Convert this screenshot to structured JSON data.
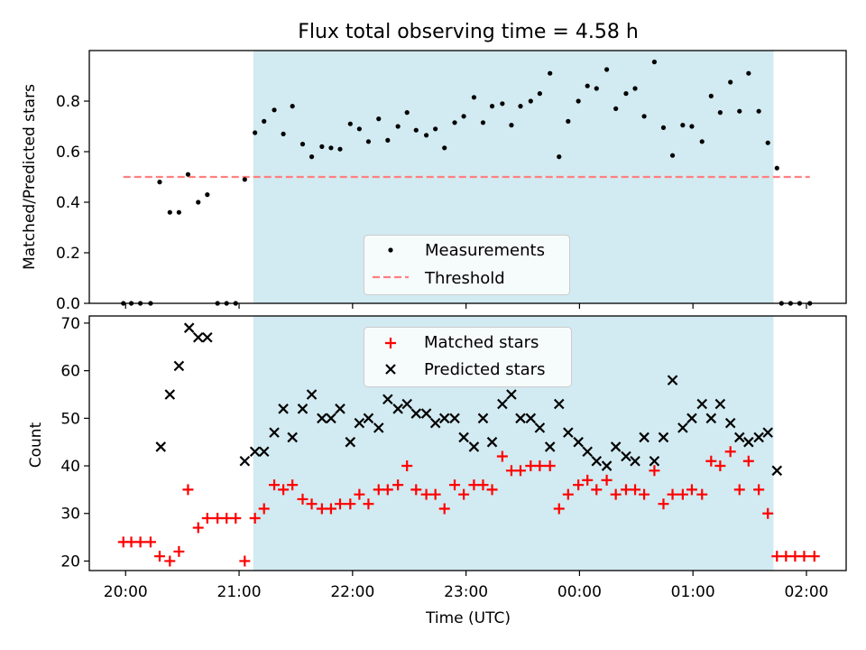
{
  "chart_data": [
    {
      "type": "scatter",
      "title": "Flux total observing time = 4.58 h",
      "ylabel": "Matched/Predicted stars",
      "ylim": [
        0,
        1.0
      ],
      "yticks": [
        "0.0",
        "0.2",
        "0.4",
        "0.6",
        "0.8"
      ],
      "ytick_values": [
        0,
        0.2,
        0.4,
        0.6,
        0.8
      ],
      "shaded_span": {
        "start": 21.125,
        "end": 25.71,
        "color": "#add8e6"
      },
      "threshold": {
        "value": 0.5,
        "x_range": [
          19.98,
          26.03
        ],
        "color": "#ff8080"
      },
      "legend": {
        "entries": [
          "Measurements",
          "Threshold"
        ],
        "placement": "lower-center"
      },
      "series": [
        {
          "name": "Measurements",
          "marker": "dot",
          "color": "#000000",
          "x": [
            19.98,
            20.05,
            20.13,
            20.22,
            20.3,
            20.39,
            20.47,
            20.55,
            20.64,
            20.72,
            20.81,
            20.89,
            20.97,
            21.05,
            21.14,
            21.22,
            21.31,
            21.39,
            21.47,
            21.56,
            21.64,
            21.73,
            21.81,
            21.89,
            21.98,
            22.06,
            22.14,
            22.23,
            22.31,
            22.4,
            22.48,
            22.56,
            22.65,
            22.73,
            22.81,
            22.9,
            22.98,
            23.07,
            23.15,
            23.23,
            23.32,
            23.4,
            23.48,
            23.57,
            23.65,
            23.74,
            23.82,
            23.9,
            23.99,
            24.07,
            24.15,
            24.24,
            24.32,
            24.41,
            24.49,
            24.57,
            24.66,
            24.74,
            24.82,
            24.91,
            24.99,
            25.08,
            25.16,
            25.24,
            25.33,
            25.41,
            25.49,
            25.58,
            25.66,
            25.74,
            25.78,
            25.86,
            25.94,
            26.03
          ],
          "y": [
            0,
            0,
            0,
            0,
            0.48,
            0.36,
            0.36,
            0.51,
            0.4,
            0.43,
            0,
            0,
            0,
            0.49,
            0.675,
            0.72,
            0.765,
            0.67,
            0.78,
            0.63,
            0.58,
            0.62,
            0.615,
            0.61,
            0.71,
            0.69,
            0.64,
            0.73,
            0.645,
            0.7,
            0.755,
            0.685,
            0.665,
            0.69,
            0.615,
            0.715,
            0.74,
            0.815,
            0.715,
            0.78,
            0.79,
            0.705,
            0.78,
            0.8,
            0.83,
            0.91,
            0.58,
            0.72,
            0.8,
            0.86,
            0.85,
            0.925,
            0.77,
            0.83,
            0.85,
            0.74,
            0.955,
            0.695,
            0.585,
            0.705,
            0.7,
            0.64,
            0.82,
            0.755,
            0.875,
            0.76,
            0.91,
            0.76,
            0.635,
            0.535,
            0,
            0,
            0,
            0
          ]
        }
      ]
    },
    {
      "type": "scatter",
      "title": "",
      "xlabel": "Time (UTC)",
      "ylabel": "Count",
      "ylim": [
        18,
        71.5
      ],
      "yticks": [
        "20",
        "30",
        "40",
        "50",
        "60",
        "70"
      ],
      "ytick_values": [
        20,
        30,
        40,
        50,
        60,
        70
      ],
      "xlim": [
        19.68,
        26.35
      ],
      "xticks": [
        "20:00",
        "21:00",
        "22:00",
        "23:00",
        "00:00",
        "01:00",
        "02:00"
      ],
      "xtick_values": [
        20,
        21,
        22,
        23,
        24,
        25,
        26
      ],
      "shaded_span": {
        "start": 21.125,
        "end": 25.71,
        "color": "#add8e6"
      },
      "legend": {
        "entries": [
          "Matched stars",
          "Predicted stars"
        ],
        "placement": "upper-center"
      },
      "series": [
        {
          "name": "Matched stars",
          "marker": "plus",
          "color": "#ff0000",
          "x": [
            19.98,
            20.05,
            20.13,
            20.22,
            20.3,
            20.39,
            20.47,
            20.55,
            20.64,
            20.72,
            20.81,
            20.89,
            20.97,
            21.05,
            21.14,
            21.22,
            21.31,
            21.39,
            21.47,
            21.56,
            21.64,
            21.73,
            21.81,
            21.89,
            21.98,
            22.06,
            22.14,
            22.23,
            22.31,
            22.4,
            22.48,
            22.56,
            22.65,
            22.73,
            22.81,
            22.9,
            22.98,
            23.07,
            23.15,
            23.23,
            23.32,
            23.4,
            23.48,
            23.57,
            23.65,
            23.74,
            23.82,
            23.9,
            23.99,
            24.07,
            24.15,
            24.24,
            24.32,
            24.41,
            24.49,
            24.57,
            24.66,
            24.74,
            24.82,
            24.91,
            24.99,
            25.08,
            25.16,
            25.24,
            25.33,
            25.41,
            25.49,
            25.58,
            25.66,
            25.74,
            25.82,
            25.9,
            25.98,
            26.07
          ],
          "y": [
            24,
            24,
            24,
            24,
            21,
            20,
            22,
            35,
            27,
            29,
            29,
            29,
            29,
            20,
            29,
            31,
            36,
            35,
            36,
            33,
            32,
            31,
            31,
            32,
            32,
            34,
            32,
            35,
            35,
            36,
            40,
            35,
            34,
            34,
            31,
            36,
            34,
            36,
            36,
            35,
            42,
            39,
            39,
            40,
            40,
            40,
            31,
            34,
            36,
            37,
            35,
            37,
            34,
            35,
            35,
            34,
            39,
            32,
            34,
            34,
            35,
            34,
            41,
            40,
            43,
            35,
            41,
            35,
            30,
            21,
            21,
            21,
            21,
            21
          ]
        },
        {
          "name": "Predicted stars",
          "marker": "x",
          "color": "#000000",
          "x": [
            20.31,
            20.39,
            20.47,
            20.56,
            20.64,
            20.72,
            21.05,
            21.14,
            21.22,
            21.31,
            21.39,
            21.47,
            21.56,
            21.64,
            21.73,
            21.81,
            21.89,
            21.98,
            22.06,
            22.14,
            22.23,
            22.31,
            22.4,
            22.48,
            22.56,
            22.65,
            22.73,
            22.81,
            22.9,
            22.98,
            23.07,
            23.15,
            23.23,
            23.32,
            23.4,
            23.48,
            23.57,
            23.65,
            23.74,
            23.82,
            23.9,
            23.99,
            24.07,
            24.15,
            24.24,
            24.32,
            24.41,
            24.49,
            24.57,
            24.66,
            24.74,
            24.82,
            24.91,
            24.99,
            25.08,
            25.16,
            25.24,
            25.33,
            25.41,
            25.49,
            25.58,
            25.66,
            25.74
          ],
          "y": [
            44,
            55,
            61,
            69,
            67,
            67,
            41,
            43,
            43,
            47,
            52,
            46,
            52,
            55,
            50,
            50,
            52,
            45,
            49,
            50,
            48,
            54,
            52,
            53,
            51,
            51,
            49,
            50,
            50,
            46,
            44,
            50,
            45,
            53,
            55,
            50,
            50,
            48,
            44,
            53,
            47,
            45,
            43,
            41,
            40,
            44,
            42,
            41,
            46,
            41,
            46,
            58,
            48,
            50,
            53,
            50,
            53,
            49,
            46,
            45,
            46,
            47,
            39
          ]
        }
      ]
    }
  ]
}
